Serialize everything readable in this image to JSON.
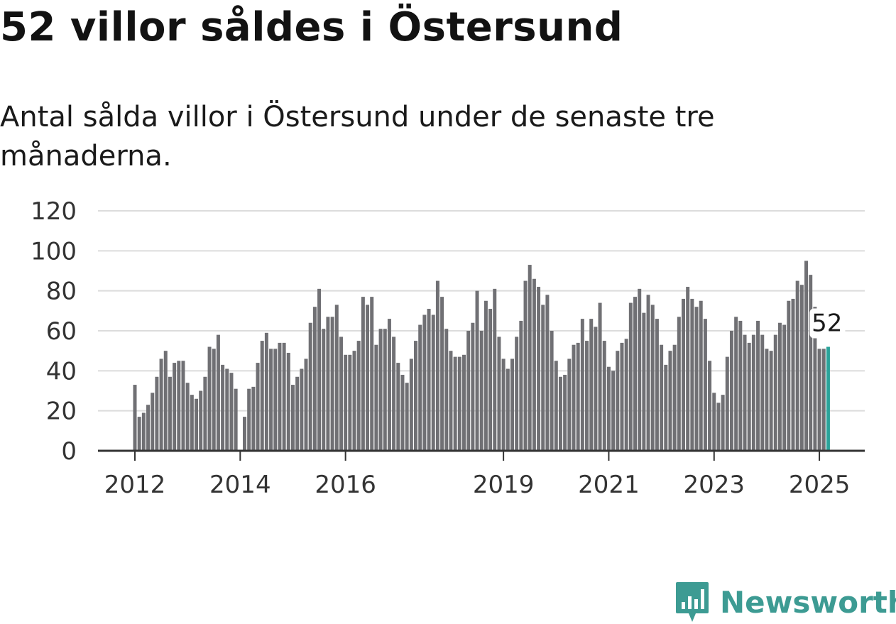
{
  "title": "52 villor såldes i Östersund",
  "subtitle": "Antal sålda villor i Östersund under de senaste tre månaderna.",
  "brand": {
    "name": "Newsworthy",
    "icon": "newsworthy-logo-icon",
    "color": "#3d9b93"
  },
  "chart_data": {
    "type": "bar",
    "title": "",
    "xlabel": "",
    "ylabel": "",
    "ylim": [
      0,
      120
    ],
    "yticks": [
      0,
      20,
      40,
      60,
      80,
      100,
      120
    ],
    "xtick_labels": [
      {
        "label": "2012",
        "index": 0
      },
      {
        "label": "2014",
        "index": 24
      },
      {
        "label": "2016",
        "index": 48
      },
      {
        "label": "2019",
        "index": 84
      },
      {
        "label": "2021",
        "index": 108
      },
      {
        "label": "2023",
        "index": 132
      },
      {
        "label": "2025",
        "index": 156
      }
    ],
    "grid": true,
    "bar_color": "#707074",
    "highlight_color": "#2ba39a",
    "highlight_label": "52",
    "start": "2012-01",
    "categories": [
      "2012-01",
      "2012-02",
      "2012-03",
      "2012-04",
      "2012-05",
      "2012-06",
      "2012-07",
      "2012-08",
      "2012-09",
      "2012-10",
      "2012-11",
      "2012-12",
      "2013-01",
      "2013-02",
      "2013-03",
      "2013-04",
      "2013-05",
      "2013-06",
      "2013-07",
      "2013-08",
      "2013-09",
      "2013-10",
      "2013-11",
      "2013-12",
      "2014-01",
      "2014-02",
      "2014-03",
      "2014-04",
      "2014-05",
      "2014-06",
      "2014-07",
      "2014-08",
      "2014-09",
      "2014-10",
      "2014-11",
      "2014-12",
      "2015-01",
      "2015-02",
      "2015-03",
      "2015-04",
      "2015-05",
      "2015-06",
      "2015-07",
      "2015-08",
      "2015-09",
      "2015-10",
      "2015-11",
      "2015-12",
      "2016-01",
      "2016-02",
      "2016-03",
      "2016-04",
      "2016-05",
      "2016-06",
      "2016-07",
      "2016-08",
      "2016-09",
      "2016-10",
      "2016-11",
      "2016-12",
      "2017-01",
      "2017-02",
      "2017-03",
      "2017-04",
      "2017-05",
      "2017-06",
      "2017-07",
      "2017-08",
      "2017-09",
      "2017-10",
      "2017-11",
      "2017-12",
      "2018-01",
      "2018-02",
      "2018-03",
      "2018-04",
      "2018-05",
      "2018-06",
      "2018-07",
      "2018-08",
      "2018-09",
      "2018-10",
      "2018-11",
      "2018-12",
      "2019-01",
      "2019-02",
      "2019-03",
      "2019-04",
      "2019-05",
      "2019-06",
      "2019-07",
      "2019-08",
      "2019-09",
      "2019-10",
      "2019-11",
      "2019-12",
      "2020-01",
      "2020-02",
      "2020-03",
      "2020-04",
      "2020-05",
      "2020-06",
      "2020-07",
      "2020-08",
      "2020-09",
      "2020-10",
      "2020-11",
      "2020-12",
      "2021-01",
      "2021-02",
      "2021-03",
      "2021-04",
      "2021-05",
      "2021-06",
      "2021-07",
      "2021-08",
      "2021-09",
      "2021-10",
      "2021-11",
      "2021-12",
      "2022-01",
      "2022-02",
      "2022-03",
      "2022-04",
      "2022-05",
      "2022-06",
      "2022-07",
      "2022-08",
      "2022-09",
      "2022-10",
      "2022-11",
      "2022-12",
      "2023-01",
      "2023-02",
      "2023-03",
      "2023-04",
      "2023-05",
      "2023-06",
      "2023-07",
      "2023-08",
      "2023-09",
      "2023-10",
      "2023-11",
      "2023-12",
      "2024-01",
      "2024-02",
      "2024-03",
      "2024-04",
      "2024-05",
      "2024-06",
      "2024-07",
      "2024-08",
      "2024-09",
      "2024-10",
      "2024-11",
      "2024-12",
      "2025-01",
      "2025-02",
      "2025-03"
    ],
    "values": [
      33,
      17,
      19,
      23,
      29,
      37,
      46,
      50,
      37,
      44,
      45,
      45,
      34,
      28,
      26,
      30,
      37,
      52,
      51,
      58,
      43,
      41,
      39,
      31,
      null,
      17,
      31,
      32,
      44,
      55,
      59,
      51,
      51,
      54,
      54,
      49,
      33,
      37,
      41,
      46,
      64,
      72,
      81,
      61,
      67,
      67,
      73,
      57,
      48,
      48,
      50,
      55,
      77,
      73,
      77,
      53,
      61,
      61,
      66,
      57,
      44,
      38,
      34,
      46,
      55,
      63,
      68,
      71,
      68,
      85,
      77,
      61,
      50,
      47,
      47,
      48,
      60,
      64,
      80,
      60,
      75,
      71,
      81,
      57,
      46,
      41,
      46,
      57,
      65,
      85,
      93,
      86,
      82,
      73,
      78,
      60,
      45,
      37,
      38,
      46,
      53,
      54,
      66,
      55,
      66,
      62,
      74,
      55,
      42,
      40,
      50,
      54,
      56,
      74,
      77,
      81,
      69,
      78,
      73,
      66,
      53,
      43,
      50,
      53,
      67,
      76,
      82,
      76,
      72,
      75,
      66,
      45,
      29,
      24,
      28,
      47,
      60,
      67,
      65,
      58,
      54,
      58,
      65,
      58,
      51,
      50,
      58,
      64,
      63,
      75,
      76,
      85,
      83,
      95,
      88,
      72,
      51,
      51,
      52
    ]
  }
}
